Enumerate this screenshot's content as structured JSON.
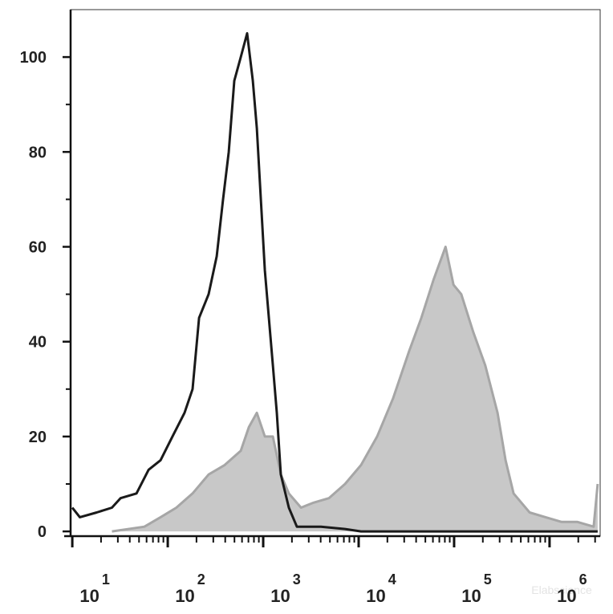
{
  "chart_data": {
    "type": "histogram-overlay",
    "log_x": true,
    "xlim": [
      9.6,
      3390000
    ],
    "ylim": [
      -1,
      110
    ],
    "yticks": [
      0,
      20,
      40,
      60,
      80,
      100
    ],
    "yminorticks": [
      10,
      30,
      50,
      70,
      90
    ],
    "xticks": [
      {
        "value": 10,
        "label": "10",
        "exponent": "1"
      },
      {
        "value": 100,
        "label": "10",
        "exponent": "2"
      },
      {
        "value": 1000,
        "label": "10",
        "exponent": "3"
      },
      {
        "value": 10000,
        "label": "10",
        "exponent": "4"
      },
      {
        "value": 100000,
        "label": "10",
        "exponent": "5"
      },
      {
        "value": 1000000,
        "label": "10",
        "exponent": "6"
      }
    ],
    "watermark": "Elabscience",
    "series": [
      {
        "color": "#c8c8c8",
        "stroke": "#a6a6a6",
        "filled": true,
        "x": [
          26,
          57,
          84,
          123,
          182,
          268,
          395,
          582,
          708,
          857,
          1040,
          1262,
          1531,
          1858,
          2490,
          3310,
          4880,
          7190,
          10600,
          15600,
          22900,
          33800,
          45300,
          60700,
          81300,
          98600,
          119000,
          159000,
          212000,
          285000,
          346000,
          420000,
          618000,
          909000,
          1340000,
          1960000,
          2900000,
          3190000
        ],
        "values": [
          0,
          1,
          3,
          5,
          8,
          12,
          14,
          17,
          22,
          25,
          20,
          20,
          12,
          8,
          5,
          6,
          7,
          10,
          14,
          20,
          28,
          38,
          45,
          53,
          60,
          52,
          50,
          42,
          35,
          25,
          15,
          8,
          4,
          3,
          2,
          2,
          1,
          10
        ]
      },
      {
        "color": "#1a1a1a",
        "filled": false,
        "x": [
          10,
          12,
          18,
          26,
          32,
          47,
          63,
          84,
          112,
          150,
          182,
          213,
          268,
          326,
          380,
          436,
          498,
          582,
          679,
          778,
          857,
          944,
          1040,
          1262,
          1390,
          1531,
          1858,
          2254,
          4030,
          7190,
          10600,
          27900,
          193000,
          1340000,
          3190000
        ],
        "values": [
          5,
          3,
          4,
          5,
          7,
          8,
          13,
          15,
          20,
          25,
          30,
          45,
          50,
          58,
          70,
          80,
          95,
          100,
          105,
          95,
          85,
          70,
          55,
          35,
          25,
          12,
          5,
          1,
          1,
          0.5,
          0,
          0,
          0,
          0,
          0
        ]
      }
    ]
  }
}
